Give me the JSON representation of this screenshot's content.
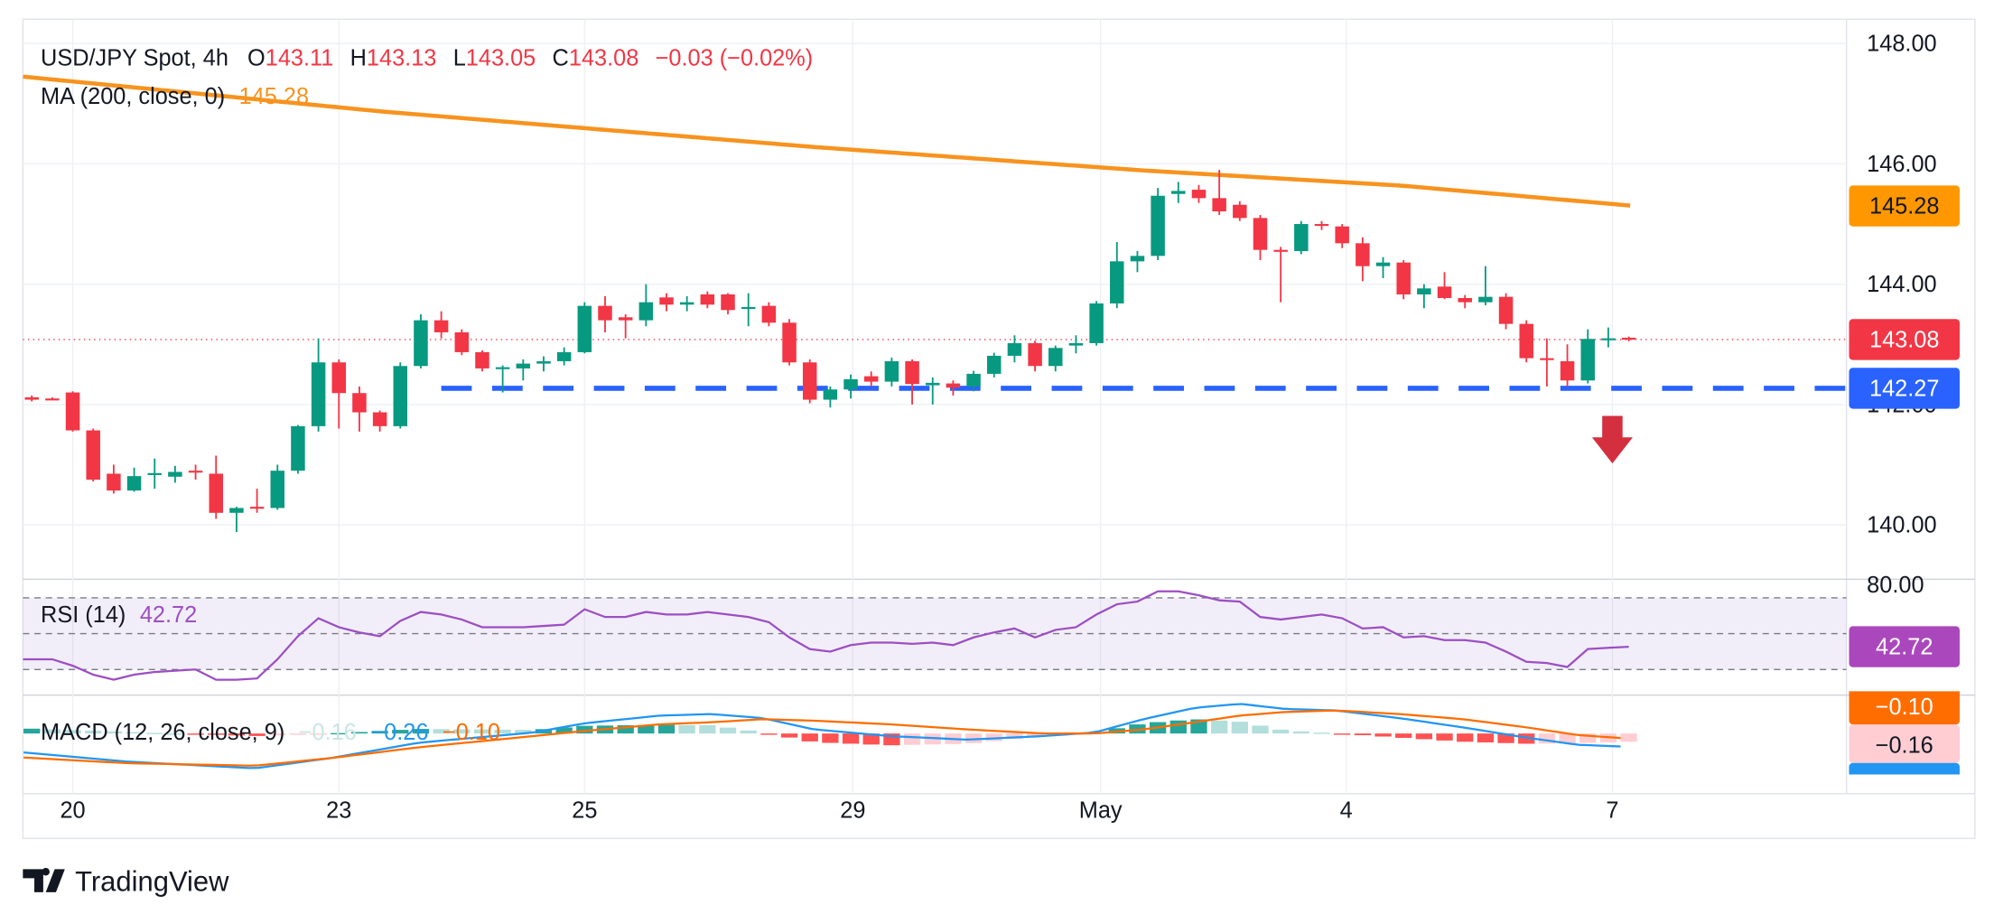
{
  "colors": {
    "up": "#089981",
    "down": "#f23645",
    "ma": "#f7931e",
    "support": "#2962ff",
    "rsi": "#9c4fc4",
    "macd": "#2196f3",
    "signal": "#ff6d00",
    "text": "#131722"
  },
  "chart_data": {
    "type": "bar",
    "title": "USD/JPY Spot, 4h",
    "ohlc_header": {
      "o_label": "O",
      "o": "143.11",
      "h_label": "H",
      "h": "143.13",
      "l_label": "L",
      "l": "143.05",
      "c_label": "C",
      "c": "143.08",
      "change": "−0.03 (−0.02%)"
    },
    "ylim": [
      139.1,
      148.4
    ],
    "y_ticks": [
      {
        "label": "148.00",
        "value": 148
      },
      {
        "label": "146.00",
        "value": 146
      },
      {
        "label": "144.00",
        "value": 144
      },
      {
        "label": "142.00",
        "value": 142
      },
      {
        "label": "140.00",
        "value": 140
      }
    ],
    "x_ticks": [
      {
        "label": "20",
        "index": 2.0
      },
      {
        "label": "23",
        "index": 15.0
      },
      {
        "label": "25",
        "index": 27.0
      },
      {
        "label": "29",
        "index": 40.1
      },
      {
        "label": "May",
        "index": 52.2
      },
      {
        "label": "4",
        "index": 64.2
      },
      {
        "label": "7",
        "index": 77.2
      }
    ],
    "candles": [
      [
        142.12,
        142.15,
        142.05,
        142.08
      ],
      [
        142.1,
        142.12,
        142.07,
        142.09
      ],
      [
        142.2,
        142.22,
        141.55,
        141.57
      ],
      [
        141.57,
        141.6,
        140.72,
        140.75
      ],
      [
        140.85,
        141.0,
        140.52,
        140.57
      ],
      [
        140.57,
        140.95,
        140.55,
        140.81
      ],
      [
        140.85,
        141.1,
        140.6,
        140.86
      ],
      [
        140.8,
        140.98,
        140.7,
        140.88
      ],
      [
        140.9,
        141.0,
        140.75,
        140.88
      ],
      [
        140.85,
        141.15,
        140.1,
        140.2
      ],
      [
        140.2,
        140.3,
        139.88,
        140.28
      ],
      [
        140.3,
        140.6,
        140.2,
        140.29
      ],
      [
        140.28,
        141.0,
        140.25,
        140.9
      ],
      [
        140.9,
        141.66,
        140.85,
        141.64
      ],
      [
        141.64,
        143.1,
        141.55,
        142.7
      ],
      [
        142.7,
        142.75,
        141.6,
        142.19
      ],
      [
        142.19,
        142.3,
        141.55,
        141.87
      ],
      [
        141.87,
        141.9,
        141.55,
        141.64
      ],
      [
        141.64,
        142.7,
        141.6,
        142.64
      ],
      [
        142.64,
        143.5,
        142.6,
        143.4
      ],
      [
        143.4,
        143.55,
        143.1,
        143.2
      ],
      [
        143.2,
        143.25,
        142.82,
        142.87
      ],
      [
        142.87,
        142.9,
        142.55,
        142.6
      ],
      [
        142.6,
        142.65,
        142.2,
        142.62
      ],
      [
        142.6,
        142.75,
        142.4,
        142.68
      ],
      [
        142.68,
        142.8,
        142.55,
        142.72
      ],
      [
        142.72,
        142.95,
        142.65,
        142.87
      ],
      [
        142.87,
        143.7,
        142.85,
        143.64
      ],
      [
        143.64,
        143.8,
        143.2,
        143.4
      ],
      [
        143.45,
        143.5,
        143.1,
        143.4
      ],
      [
        143.4,
        144.0,
        143.3,
        143.7
      ],
      [
        143.78,
        143.85,
        143.55,
        143.66
      ],
      [
        143.66,
        143.8,
        143.55,
        143.7
      ],
      [
        143.83,
        143.88,
        143.6,
        143.66
      ],
      [
        143.83,
        143.85,
        143.5,
        143.57
      ],
      [
        143.6,
        143.85,
        143.3,
        143.62
      ],
      [
        143.64,
        143.7,
        143.3,
        143.36
      ],
      [
        143.36,
        143.42,
        142.65,
        142.7
      ],
      [
        142.7,
        142.75,
        142.02,
        142.08
      ],
      [
        142.08,
        142.3,
        141.95,
        142.25
      ],
      [
        142.25,
        142.5,
        142.1,
        142.42
      ],
      [
        142.47,
        142.55,
        142.3,
        142.38
      ],
      [
        142.38,
        142.78,
        142.3,
        142.72
      ],
      [
        142.72,
        142.75,
        142.0,
        142.34
      ],
      [
        142.32,
        142.45,
        142.0,
        142.36
      ],
      [
        142.35,
        142.4,
        142.15,
        142.28
      ],
      [
        142.3,
        142.56,
        142.22,
        142.51
      ],
      [
        142.51,
        142.86,
        142.45,
        142.81
      ],
      [
        142.81,
        143.15,
        142.7,
        143.02
      ],
      [
        143.02,
        143.06,
        142.55,
        142.64
      ],
      [
        142.64,
        142.98,
        142.55,
        142.94
      ],
      [
        142.98,
        143.15,
        142.85,
        143.02
      ],
      [
        143.02,
        143.72,
        142.98,
        143.68
      ],
      [
        143.68,
        144.7,
        143.6,
        144.38
      ],
      [
        144.38,
        144.55,
        144.2,
        144.47
      ],
      [
        144.47,
        145.6,
        144.4,
        145.47
      ],
      [
        145.5,
        145.7,
        145.35,
        145.55
      ],
      [
        145.57,
        145.65,
        145.35,
        145.43
      ],
      [
        145.43,
        145.9,
        145.15,
        145.21
      ],
      [
        145.32,
        145.38,
        145.05,
        145.1
      ],
      [
        145.1,
        145.15,
        144.4,
        144.57
      ],
      [
        144.57,
        144.62,
        143.7,
        144.55
      ],
      [
        144.55,
        145.05,
        144.5,
        145.0
      ],
      [
        145.0,
        145.05,
        144.9,
        144.98
      ],
      [
        144.96,
        145.0,
        144.6,
        144.68
      ],
      [
        144.68,
        144.78,
        144.05,
        144.3
      ],
      [
        144.3,
        144.45,
        144.1,
        144.36
      ],
      [
        144.36,
        144.4,
        143.75,
        143.83
      ],
      [
        143.83,
        144.0,
        143.6,
        143.93
      ],
      [
        143.96,
        144.2,
        143.75,
        143.77
      ],
      [
        143.77,
        143.82,
        143.6,
        143.7
      ],
      [
        143.7,
        144.3,
        143.65,
        143.79
      ],
      [
        143.79,
        143.85,
        143.25,
        143.34
      ],
      [
        143.34,
        143.4,
        142.7,
        142.77
      ],
      [
        142.77,
        143.1,
        142.3,
        142.74
      ],
      [
        142.72,
        143.0,
        142.3,
        142.4
      ],
      [
        142.4,
        143.25,
        142.35,
        143.09
      ],
      [
        143.09,
        143.28,
        142.95,
        143.1
      ],
      [
        143.11,
        143.13,
        143.05,
        143.08
      ]
    ],
    "ma": {
      "label": "MA (200, close, 0)",
      "value_label": "145.28",
      "points": [
        [
          -0.43,
          147.45
        ],
        [
          17.1,
          146.87
        ],
        [
          38.2,
          146.28
        ],
        [
          54.3,
          145.89
        ],
        [
          66.8,
          145.64
        ],
        [
          78.3,
          145.3
        ]
      ]
    },
    "last_price": {
      "value": 143.08,
      "label": "143.08"
    },
    "support": {
      "value": 142.27,
      "label": "142.27",
      "from_index": 20.0
    },
    "arrow": {
      "index": 77.2,
      "price_top": 141.81,
      "price_bottom": 141.02
    },
    "rsi": {
      "label": "RSI (14)",
      "value_label": "42.72",
      "top_tick": "80.00",
      "levels": [
        70,
        50,
        30
      ],
      "values": [
        35.7,
        35.7,
        32.1,
        27.1,
        24.3,
        27.1,
        28.6,
        29.3,
        30.0,
        24.3,
        24.3,
        25.0,
        35.7,
        48.6,
        58.6,
        53.6,
        50.7,
        48.6,
        57.1,
        62.1,
        60.7,
        57.9,
        53.6,
        53.6,
        53.6,
        54.3,
        55.0,
        63.6,
        59.3,
        59.3,
        62.1,
        60.7,
        60.7,
        62.1,
        60.7,
        59.3,
        56.4,
        47.9,
        41.4,
        40.0,
        43.6,
        45.0,
        45.0,
        44.3,
        45.0,
        43.6,
        47.9,
        50.7,
        52.9,
        47.9,
        52.1,
        53.6,
        60.7,
        66.4,
        67.9,
        73.6,
        73.6,
        71.4,
        68.6,
        67.9,
        59.3,
        57.9,
        59.3,
        60.7,
        58.6,
        52.9,
        53.6,
        47.9,
        48.6,
        46.4,
        46.4,
        45.0,
        40.0,
        34.3,
        33.6,
        31.4,
        41.4,
        42.1,
        42.7
      ]
    },
    "macd": {
      "label": "MACD (12, 26, close, 9)",
      "hist_label": "−0.16",
      "macd_label": "−0.26",
      "signal_label": "−0.10",
      "macd_points": [
        [
          -0.4,
          -0.37
        ],
        [
          4.7,
          -0.55
        ],
        [
          10.9,
          -0.68
        ],
        [
          14.6,
          -0.48
        ],
        [
          18.9,
          -0.18
        ],
        [
          24.5,
          0.02
        ],
        [
          27.0,
          0.2
        ],
        [
          30.7,
          0.35
        ],
        [
          33.2,
          0.38
        ],
        [
          35.7,
          0.3
        ],
        [
          38.2,
          0.08
        ],
        [
          41.9,
          -0.05
        ],
        [
          45.7,
          -0.12
        ],
        [
          49.4,
          -0.05
        ],
        [
          51.9,
          0.02
        ],
        [
          54.3,
          0.28
        ],
        [
          56.8,
          0.5
        ],
        [
          59.0,
          0.58
        ],
        [
          61.2,
          0.48
        ],
        [
          63.7,
          0.45
        ],
        [
          66.8,
          0.3
        ],
        [
          69.9,
          0.12
        ],
        [
          73.0,
          -0.08
        ],
        [
          75.5,
          -0.22
        ],
        [
          78.0,
          -0.26
        ]
      ],
      "signal_points": [
        [
          -0.4,
          -0.47
        ],
        [
          4.7,
          -0.58
        ],
        [
          10.9,
          -0.63
        ],
        [
          14.6,
          -0.48
        ],
        [
          18.9,
          -0.27
        ],
        [
          24.5,
          -0.05
        ],
        [
          27.0,
          0.05
        ],
        [
          30.7,
          0.18
        ],
        [
          33.2,
          0.22
        ],
        [
          35.7,
          0.28
        ],
        [
          38.2,
          0.25
        ],
        [
          41.9,
          0.18
        ],
        [
          45.7,
          0.08
        ],
        [
          49.4,
          0.0
        ],
        [
          51.9,
          0.0
        ],
        [
          54.3,
          0.08
        ],
        [
          56.8,
          0.22
        ],
        [
          59.0,
          0.35
        ],
        [
          61.2,
          0.42
        ],
        [
          63.7,
          0.45
        ],
        [
          66.8,
          0.38
        ],
        [
          69.9,
          0.28
        ],
        [
          73.0,
          0.12
        ],
        [
          75.5,
          -0.03
        ],
        [
          78.0,
          -0.1
        ]
      ]
    }
  },
  "branding": {
    "name": "TradingView"
  }
}
